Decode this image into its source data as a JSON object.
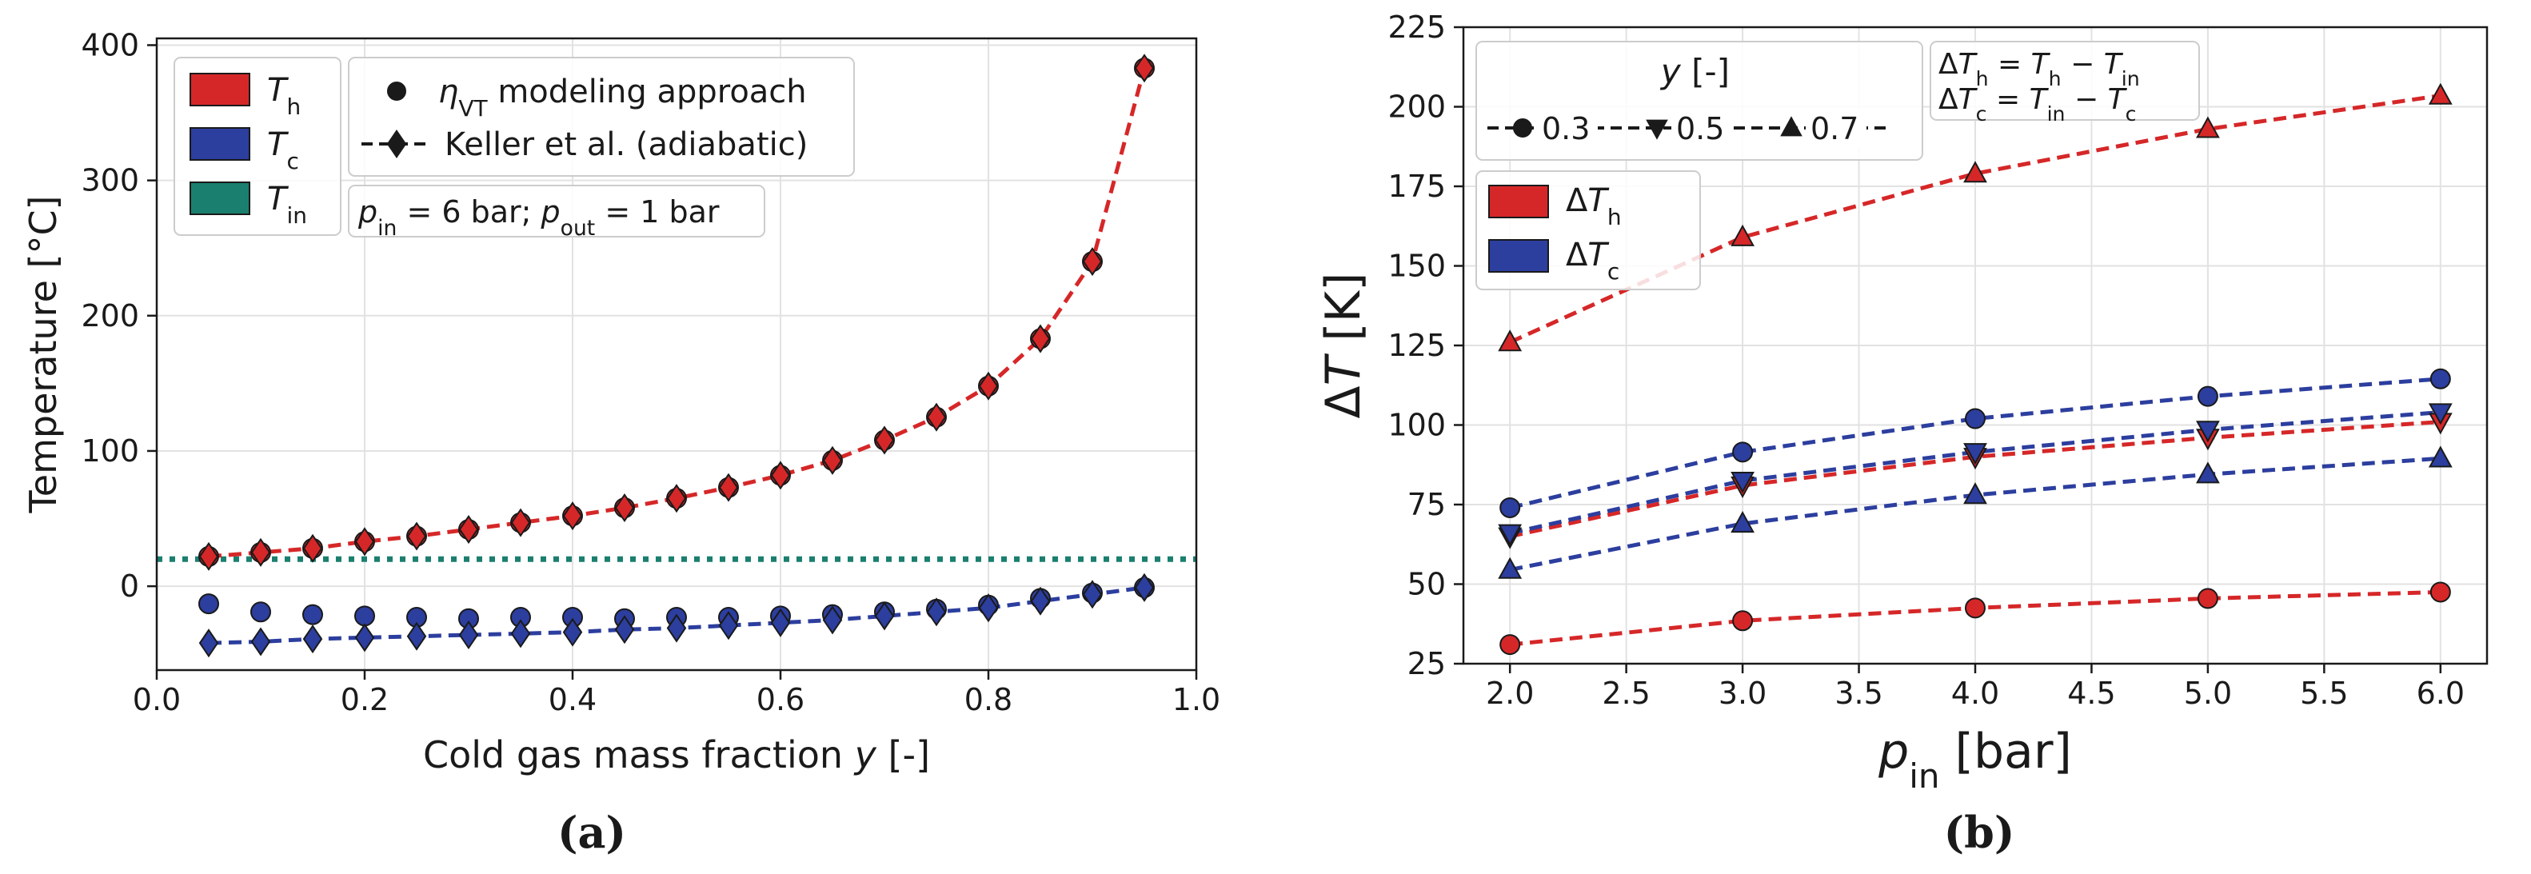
{
  "chart_data": [
    {
      "panel_label": "(a)",
      "type": "scatter",
      "xlabel": "Cold gas mass fraction y [-]",
      "ylabel": "Temperature [°C]",
      "xlim": [
        0.0,
        1.0
      ],
      "ylim": [
        -62,
        405
      ],
      "xticks": [
        "0.0",
        "0.2",
        "0.4",
        "0.6",
        "0.8",
        "1.0"
      ],
      "yticks": [
        "0",
        "100",
        "200",
        "300",
        "400"
      ],
      "grid": true,
      "legend": {
        "placement": "top-left",
        "patches": [
          {
            "label": "T_h",
            "color": "#d62728"
          },
          {
            "label": "T_c",
            "color": "#2c3e9e"
          },
          {
            "label": "T_in",
            "color": "#1a7f6e"
          }
        ],
        "markers": [
          {
            "label": "η_VT modeling approach",
            "marker": "circle"
          },
          {
            "label": "Keller et al. (adiabatic)",
            "marker": "diamond",
            "line": "dashed"
          }
        ],
        "annotation": "p_in = 6 bar; p_out = 1 bar"
      },
      "x": [
        0.05,
        0.1,
        0.15,
        0.2,
        0.25,
        0.3,
        0.35,
        0.4,
        0.45,
        0.5,
        0.55,
        0.6,
        0.65,
        0.7,
        0.75,
        0.8,
        0.85,
        0.9,
        0.95
      ],
      "series": [
        {
          "name": "T_h (η_VT modeling approach)",
          "color": "#d62728",
          "marker": "circle",
          "values": [
            22,
            25,
            28,
            33,
            37,
            42,
            47,
            52,
            58,
            65,
            73,
            82,
            93,
            108,
            125,
            148,
            183,
            240,
            383
          ]
        },
        {
          "name": "T_h (Keller et al.)",
          "color": "#d62728",
          "marker": "diamond",
          "line": "dashed",
          "values": [
            22,
            25,
            28,
            33,
            37,
            42,
            47,
            52,
            58,
            65,
            73,
            82,
            93,
            108,
            125,
            148,
            183,
            240,
            383
          ]
        },
        {
          "name": "T_c (η_VT modeling approach)",
          "color": "#2c3e9e",
          "marker": "circle",
          "values": [
            -13,
            -19,
            -21,
            -22,
            -23,
            -24,
            -23,
            -23,
            -24,
            -23,
            -23,
            -22,
            -21,
            -19,
            -17,
            -14,
            -9,
            -5,
            -1
          ]
        },
        {
          "name": "T_c (Keller et al.)",
          "color": "#2c3e9e",
          "marker": "diamond",
          "line": "dashed",
          "values": [
            -42,
            -41,
            -39,
            -38,
            -37,
            -36,
            -35,
            -34,
            -32,
            -31,
            -29,
            -27,
            -25,
            -22,
            -19,
            -16,
            -11,
            -6,
            -1
          ]
        },
        {
          "name": "T_in",
          "color": "#1a7f6e",
          "line": "dotted",
          "values": [
            20,
            20
          ]
        }
      ]
    },
    {
      "panel_label": "(b)",
      "type": "line",
      "xlabel": "p_in [bar]",
      "ylabel": "ΔT [K]",
      "xlim": [
        1.8,
        6.2
      ],
      "ylim": [
        25,
        225
      ],
      "xticks": [
        "2.0",
        "2.5",
        "3.0",
        "3.5",
        "4.0",
        "4.5",
        "5.0",
        "5.5",
        "6.0"
      ],
      "yticks": [
        "25",
        "50",
        "75",
        "100",
        "125",
        "150",
        "175",
        "200",
        "225"
      ],
      "grid": true,
      "legend": {
        "placement": "top-left",
        "title": "y [-]",
        "markers": [
          {
            "label": "0.3",
            "marker": "circle"
          },
          {
            "label": "0.5",
            "marker": "triangle-down"
          },
          {
            "label": "0.7",
            "marker": "triangle-up"
          }
        ],
        "patches": [
          {
            "label": "ΔT_h",
            "color": "#d62728"
          },
          {
            "label": "ΔT_c",
            "color": "#2c3e9e"
          }
        ],
        "definitions": [
          "ΔT_h = T_h − T_in",
          "ΔT_c = T_in − T_c"
        ]
      },
      "x": [
        2.0,
        3.0,
        4.0,
        5.0,
        6.0
      ],
      "series": [
        {
          "name": "ΔT_h y=0.3",
          "color": "#d62728",
          "marker": "circle",
          "values": [
            31,
            38.5,
            42.5,
            45.5,
            47.5
          ]
        },
        {
          "name": "ΔT_h y=0.5",
          "color": "#d62728",
          "marker": "triangle-down",
          "values": [
            65,
            81,
            90,
            96,
            101
          ]
        },
        {
          "name": "ΔT_h y=0.7",
          "color": "#d62728",
          "marker": "triangle-up",
          "values": [
            126,
            159,
            179,
            193,
            203.5
          ]
        },
        {
          "name": "ΔT_c y=0.3",
          "color": "#2c3e9e",
          "marker": "circle",
          "values": [
            74,
            91.5,
            102,
            109,
            114.5
          ]
        },
        {
          "name": "ΔT_c y=0.5",
          "color": "#2c3e9e",
          "marker": "triangle-down",
          "values": [
            66,
            82.5,
            91.5,
            98.5,
            104
          ]
        },
        {
          "name": "ΔT_c y=0.7",
          "color": "#2c3e9e",
          "marker": "triangle-up",
          "values": [
            54.5,
            69,
            78,
            84.5,
            89.5
          ]
        }
      ]
    }
  ]
}
